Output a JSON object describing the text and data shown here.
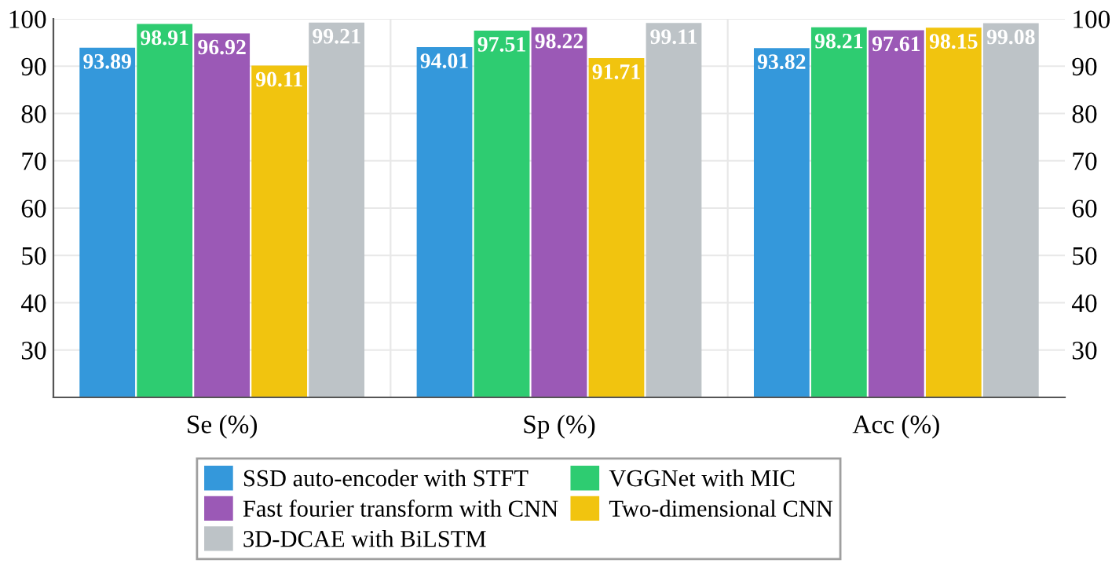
{
  "chart_data": {
    "type": "bar",
    "categories": [
      "Se (%)",
      "Sp (%)",
      "Acc (%)"
    ],
    "series": [
      {
        "name": "SSD auto-encoder with STFT",
        "color": "#3498db",
        "values": [
          93.89,
          94.01,
          93.82
        ]
      },
      {
        "name": "VGGNet with MIC",
        "color": "#2ecc71",
        "values": [
          98.91,
          97.51,
          98.21
        ]
      },
      {
        "name": "Fast fourier transform with CNN",
        "color": "#9b59b6",
        "values": [
          96.92,
          98.22,
          97.61
        ]
      },
      {
        "name": "Two-dimensional CNN",
        "color": "#f1c40f",
        "values": [
          90.11,
          91.71,
          98.15
        ]
      },
      {
        "name": "3D-DCAE with BiLSTM",
        "color": "#bdc3c7",
        "values": [
          99.21,
          99.11,
          99.08
        ]
      }
    ],
    "ylim": [
      20,
      100
    ],
    "yticks": [
      30,
      40,
      50,
      60,
      70,
      80,
      90,
      100
    ],
    "y2lim": [
      20,
      100
    ],
    "y2ticks": [
      30,
      40,
      50,
      60,
      70,
      80,
      90,
      100
    ],
    "grid": true,
    "legend": "bottom",
    "data_labels": true
  }
}
